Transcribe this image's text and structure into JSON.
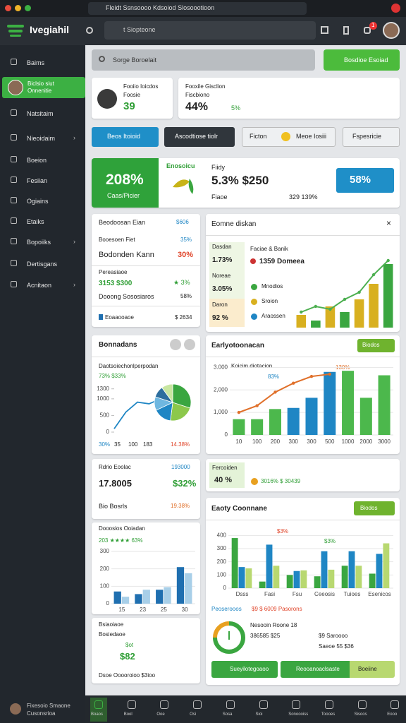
{
  "browser": {
    "tab": "Fleidt Ssnsoooo Kdsoiod Slosoootioon"
  },
  "header": {
    "brand": "Ivegiahil",
    "address": "t Siopteone",
    "badge": "1"
  },
  "sidebar": {
    "items": [
      "Baims",
      "Natsitaim",
      "Nieoidaim",
      "Boeion",
      "Fesiian",
      "Ogiains",
      "Etaiks",
      "Bopoiiks",
      "Dertisgans",
      "Acnitaon"
    ],
    "user": {
      "name": "Biclsio siut",
      "role": "Onnenitie"
    },
    "footer": [
      "Fixesoio Smaone",
      "Cusonsrioa"
    ]
  },
  "search": {
    "placeholder": "Sorge Boroelait",
    "button": "Bosdioe Esoiad"
  },
  "profile_card": {
    "name": "Fooiio Ioicdos",
    "role": "Foosie",
    "value": "39"
  },
  "stat_card": {
    "title": "Fooxile Gisclion",
    "subtitle": "Fiscbiono",
    "value": "44%",
    "delta": "5%"
  },
  "buttons": [
    "Beos Itoioid",
    "Ascodtiose tiolr",
    "Ficton",
    "Meoe Iosiii",
    "Fspesricie"
  ],
  "kpi": {
    "big": "208%",
    "big_label": "Caas/Picier",
    "brand": "Enosoicu",
    "label": "Fiidy",
    "main": "5.3% $250",
    "sub": "Fiaoe",
    "foot": "329 139%",
    "badge": "58%"
  },
  "panel_list": {
    "title": "Beodoosan Eian",
    "tag": "$606",
    "rows": [
      [
        "Booesoen Fiet",
        "35%"
      ],
      [
        "Bodonden Kann",
        "30%"
      ]
    ],
    "section": "Pereasiaoe",
    "rows2": [
      [
        "3153 $300",
        "★ 3%"
      ],
      [
        "Dooong Sososiaros",
        "58%"
      ]
    ],
    "footer": [
      "Eoaaooaoe",
      "$ 2634"
    ]
  },
  "panel_trend": {
    "title": "Eomne diskan",
    "side": [
      {
        "label": "Dasdan",
        "value": "1.73%"
      },
      {
        "label": "Noreae",
        "value": "3.05%"
      },
      {
        "label": "Daron",
        "value": "92 %"
      }
    ],
    "head": "Faciae & Banik",
    "sub": "1359 Domeea",
    "legend": [
      "Mnodios",
      "Sroion",
      "Araossen"
    ]
  },
  "panel_share": {
    "title": "Bonnadans",
    "subtitle": "Daotsoiechonlperpodan",
    "note": "73% $33%",
    "footer": [
      "30%",
      "35",
      "100",
      "183",
      "14.38%"
    ]
  },
  "panel_growth": {
    "title": "Earlyotoonacan",
    "button": "Biodos",
    "annotations": [
      "Koicim diotacion",
      "83%",
      "130%"
    ]
  },
  "panel_rate": {
    "title": "Rdrio Eoolac",
    "tag": "193000",
    "value": "17.8005",
    "delta": "$32%",
    "foot": "Bio Bosrls",
    "foot_value": "19.38%"
  },
  "panel_mini": {
    "title": "Fercoiden",
    "value": "40 %",
    "note": "3016% $ 30439"
  },
  "panel_compare": {
    "title": "Eaoty Coonnane",
    "button": "Biodos",
    "annotations": [
      "$3%",
      "$3%"
    ],
    "legend_title": "Peoserooos",
    "legend_note": "$9 $ 6009 Pasorons",
    "stats": [
      "Nesooin Roone 18",
      "386585 $25",
      "$9 Saroooo",
      "Saeoe 55 $36"
    ]
  },
  "panel_weekly": {
    "title": "Dooosios Ooiadan",
    "note": "203 ★★★★ 63%"
  },
  "panel_summary": {
    "title": "Bsiaoiaoe",
    "subtitle": "Bosiedaoe",
    "tag": "$ot",
    "value": "$82",
    "foot": "Dsoe Ooooroioo $3ioo"
  },
  "bottom_buttons": [
    "Sueyilotegoaoo",
    "Reooanoaclsaste",
    "Boeiine"
  ],
  "tabbar": [
    "Boaos",
    "Bool",
    "Ooe",
    "Osi",
    "Sosa",
    "Sioi",
    "Sonoooiss",
    "Toooes",
    "Sisoos",
    "Eooo"
  ],
  "charts": {
    "trend": {
      "type": "bar_line",
      "bars": [
        18,
        10,
        30,
        22,
        40,
        62,
        90
      ],
      "bar_colors": [
        "#d8b020",
        "#3aa640",
        "#d8b020",
        "#3aa640",
        "#d8b020",
        "#d8b020",
        "#3aa640"
      ],
      "line": [
        22,
        30,
        26,
        40,
        50,
        75,
        95
      ],
      "line_color": "#4caf50",
      "ylim": [
        0,
        100
      ]
    },
    "growth": {
      "type": "bar_line",
      "categories": [
        "10",
        "100",
        "200",
        "300",
        "300",
        "500",
        "1000",
        "2000",
        "3000"
      ],
      "bars": [
        700,
        700,
        1150,
        1200,
        1650,
        2800,
        2850,
        1650,
        2650
      ],
      "bar_colors": [
        "#4cb84c",
        "#4cb84c",
        "#4cb84c",
        "#1f86c4",
        "#1f86c4",
        "#1f86c4",
        "#4cb84c",
        "#4cb84c",
        "#4cb84c"
      ],
      "line": [
        1000,
        1300,
        1900,
        2300,
        2600,
        2700,
        null,
        null,
        null
      ],
      "line_color": "#e0702a",
      "ylim": [
        0,
        3200
      ],
      "yticks": [
        0,
        {
          "value": 1000,
          "label": "1,000"
        },
        {
          "value": 2000,
          "label": "2,000"
        },
        {
          "value": 3000,
          "label": "3.000"
        }
      ]
    },
    "share": {
      "type": "pie_line",
      "pie": [
        30,
        22,
        16,
        12,
        10,
        10
      ],
      "pie_colors": [
        "#3aa640",
        "#8cc84b",
        "#1f86c4",
        "#6fb7e0",
        "#2d6e9e",
        "#c8e6a0"
      ],
      "line": [
        100,
        600,
        900,
        850,
        1000
      ],
      "line_color": "#1f86c4",
      "ylim": [
        0,
        1400
      ],
      "yticks": [
        0,
        500,
        1000,
        1300
      ]
    },
    "weekly": {
      "type": "grouped_bar",
      "categories": [
        "15",
        "23",
        "25",
        "30"
      ],
      "series": [
        {
          "color": "#1f6fb0",
          "values": [
            70,
            55,
            80,
            210
          ]
        },
        {
          "color": "#a8cfe8",
          "values": [
            40,
            80,
            95,
            175
          ]
        }
      ],
      "ylim": [
        0,
        300
      ],
      "yticks": [
        0,
        100,
        200,
        300
      ]
    },
    "compare": {
      "type": "grouped_bar",
      "categories": [
        "Dsss",
        "Fasi",
        "Fsu",
        "Ceeosis",
        "Tuioes",
        "Esenicos"
      ],
      "series": [
        {
          "color": "#3aa640",
          "values": [
            380,
            50,
            100,
            90,
            170,
            110
          ]
        },
        {
          "color": "#1f86c4",
          "values": [
            160,
            330,
            130,
            280,
            280,
            260
          ]
        },
        {
          "color": "#b8d870",
          "values": [
            150,
            170,
            135,
            140,
            170,
            340
          ]
        }
      ],
      "ylim": [
        0,
        450
      ],
      "yticks": [
        0,
        100,
        200,
        300,
        400
      ]
    },
    "gauge": {
      "type": "donut",
      "value": 75,
      "max": 100,
      "color": "#3aa640",
      "rest_color": "#e8a020"
    }
  }
}
